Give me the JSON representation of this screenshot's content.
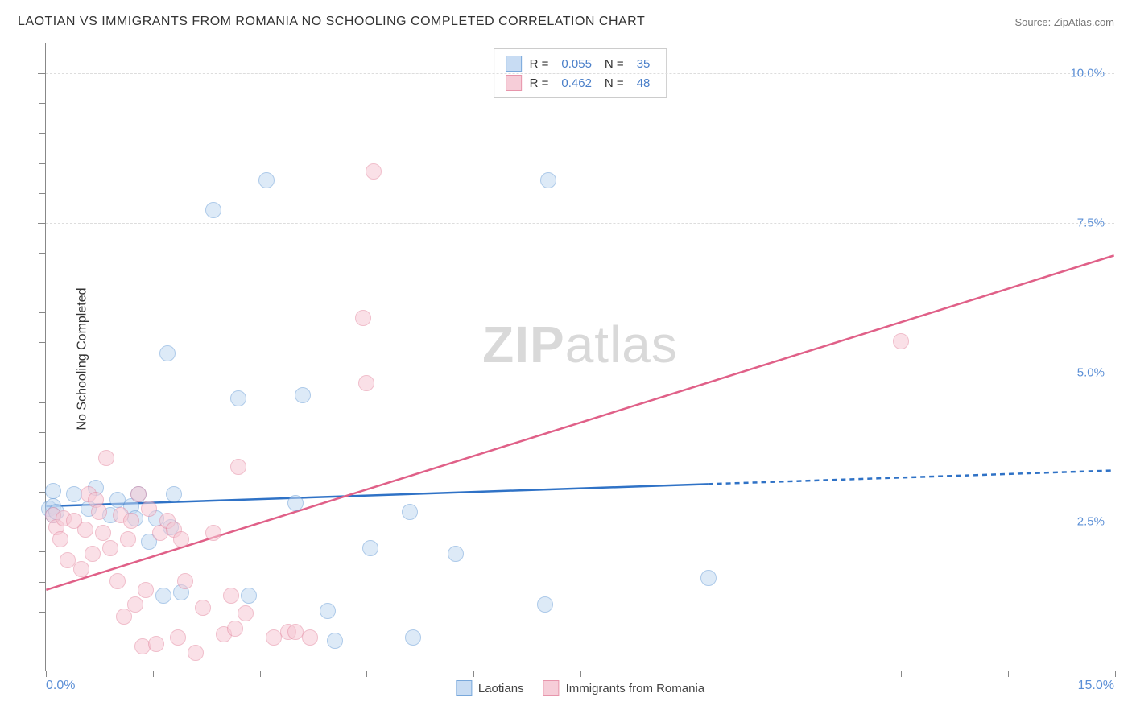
{
  "header": {
    "title": "LAOTIAN VS IMMIGRANTS FROM ROMANIA NO SCHOOLING COMPLETED CORRELATION CHART",
    "source": "Source: ZipAtlas.com"
  },
  "ylabel": "No Schooling Completed",
  "watermark": {
    "part1": "ZIP",
    "part2": "atlas"
  },
  "chart": {
    "type": "scatter",
    "xlim": [
      0,
      15
    ],
    "ylim": [
      0,
      10.5
    ],
    "x_tick_positions": [
      0,
      1.5,
      3.0,
      4.5,
      6.0,
      7.5,
      9.0,
      10.5,
      12.0,
      13.5,
      15.0
    ],
    "x_tick_labels": {
      "first": "0.0%",
      "last": "15.0%"
    },
    "y_gridlines": [
      2.5,
      5.0,
      7.5,
      10.0
    ],
    "y_tick_labels": [
      "2.5%",
      "5.0%",
      "7.5%",
      "10.0%"
    ],
    "y_minor_ticks": [
      0.5,
      1.0,
      1.5,
      2.0,
      3.0,
      3.5,
      4.0,
      4.5,
      5.5,
      6.0,
      6.5,
      7.0,
      8.0,
      8.5,
      9.0,
      9.5
    ],
    "background_color": "#ffffff",
    "grid_color": "#dddddd",
    "axis_color": "#888888",
    "marker_radius": 10,
    "marker_border_width": 1.5,
    "series": [
      {
        "name": "Laotians",
        "fill": "#c3d9f2",
        "stroke": "#6b9fd8",
        "fill_opacity": 0.55,
        "trend": {
          "y_at_x0": 2.75,
          "y_at_xmax": 3.35,
          "solid_until_x": 9.3,
          "color": "#2f72c6",
          "width": 2.5,
          "dash": "6,5"
        },
        "points": [
          [
            0.05,
            2.7
          ],
          [
            0.1,
            2.75
          ],
          [
            0.1,
            2.6
          ],
          [
            0.1,
            3.0
          ],
          [
            0.15,
            2.65
          ],
          [
            0.4,
            2.95
          ],
          [
            0.6,
            2.7
          ],
          [
            0.7,
            3.05
          ],
          [
            0.9,
            2.6
          ],
          [
            1.0,
            2.85
          ],
          [
            1.2,
            2.75
          ],
          [
            1.25,
            2.55
          ],
          [
            1.3,
            2.95
          ],
          [
            1.45,
            2.15
          ],
          [
            1.55,
            2.55
          ],
          [
            1.65,
            1.25
          ],
          [
            1.7,
            5.3
          ],
          [
            1.75,
            2.4
          ],
          [
            1.8,
            2.95
          ],
          [
            1.9,
            1.3
          ],
          [
            2.35,
            7.7
          ],
          [
            2.7,
            4.55
          ],
          [
            2.85,
            1.25
          ],
          [
            3.1,
            8.2
          ],
          [
            3.5,
            2.8
          ],
          [
            3.6,
            4.6
          ],
          [
            3.95,
            1.0
          ],
          [
            4.05,
            0.5
          ],
          [
            4.55,
            2.05
          ],
          [
            5.1,
            2.65
          ],
          [
            5.15,
            0.55
          ],
          [
            5.75,
            1.95
          ],
          [
            7.0,
            1.1
          ],
          [
            7.05,
            8.2
          ],
          [
            9.3,
            1.55
          ]
        ]
      },
      {
        "name": "Immigrants from Romania",
        "fill": "#f6c8d4",
        "stroke": "#e58aa2",
        "fill_opacity": 0.55,
        "trend": {
          "y_at_x0": 1.35,
          "y_at_xmax": 6.95,
          "solid_until_x": 15,
          "color": "#e06088",
          "width": 2.5,
          "dash": ""
        },
        "points": [
          [
            0.1,
            2.6
          ],
          [
            0.15,
            2.4
          ],
          [
            0.2,
            2.2
          ],
          [
            0.25,
            2.55
          ],
          [
            0.3,
            1.85
          ],
          [
            0.4,
            2.5
          ],
          [
            0.5,
            1.7
          ],
          [
            0.55,
            2.35
          ],
          [
            0.6,
            2.95
          ],
          [
            0.65,
            1.95
          ],
          [
            0.7,
            2.85
          ],
          [
            0.75,
            2.65
          ],
          [
            0.8,
            2.3
          ],
          [
            0.85,
            3.55
          ],
          [
            0.9,
            2.05
          ],
          [
            1.0,
            1.5
          ],
          [
            1.05,
            2.6
          ],
          [
            1.1,
            0.9
          ],
          [
            1.15,
            2.2
          ],
          [
            1.2,
            2.5
          ],
          [
            1.25,
            1.1
          ],
          [
            1.3,
            2.95
          ],
          [
            1.35,
            0.4
          ],
          [
            1.4,
            1.35
          ],
          [
            1.45,
            2.7
          ],
          [
            1.55,
            0.45
          ],
          [
            1.6,
            2.3
          ],
          [
            1.7,
            2.5
          ],
          [
            1.8,
            2.35
          ],
          [
            1.85,
            0.55
          ],
          [
            1.9,
            2.2
          ],
          [
            1.95,
            1.5
          ],
          [
            2.1,
            0.3
          ],
          [
            2.2,
            1.05
          ],
          [
            2.35,
            2.3
          ],
          [
            2.5,
            0.6
          ],
          [
            2.6,
            1.25
          ],
          [
            2.65,
            0.7
          ],
          [
            2.7,
            3.4
          ],
          [
            2.8,
            0.95
          ],
          [
            3.2,
            0.55
          ],
          [
            3.4,
            0.65
          ],
          [
            3.5,
            0.65
          ],
          [
            3.7,
            0.55
          ],
          [
            4.5,
            4.8
          ],
          [
            4.45,
            5.9
          ],
          [
            4.6,
            8.35
          ],
          [
            12.0,
            5.5
          ]
        ]
      }
    ]
  },
  "legend_top": [
    {
      "series_index": 0,
      "r_label": "R =",
      "r_value": "0.055",
      "n_label": "N =",
      "n_value": "35"
    },
    {
      "series_index": 1,
      "r_label": "R =",
      "r_value": "0.462",
      "n_label": "N =",
      "n_value": "48"
    }
  ],
  "legend_bottom": [
    {
      "series_index": 0,
      "label": "Laotians"
    },
    {
      "series_index": 1,
      "label": "Immigrants from Romania"
    }
  ]
}
